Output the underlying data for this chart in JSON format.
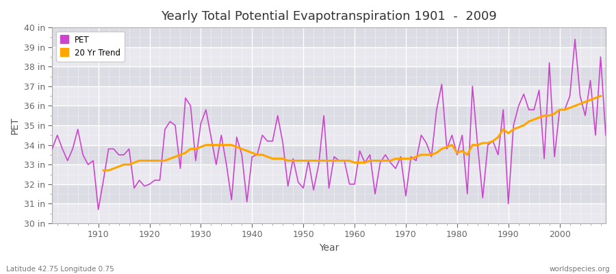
{
  "title": "Yearly Total Potential Evapotranspiration 1901  -  2009",
  "xlabel": "Year",
  "ylabel": "PET",
  "subtitle_left": "Latitude 42.75 Longitude 0.75",
  "subtitle_right": "worldspecies.org",
  "pet_color": "#CC44CC",
  "trend_color": "#FFA500",
  "bg_color": "#FFFFFF",
  "plot_bg_color": "#E8E8EE",
  "plot_bg_alt_color": "#DCDCE4",
  "ylim": [
    30,
    40
  ],
  "yticks": [
    30,
    31,
    32,
    33,
    34,
    35,
    36,
    37,
    38,
    39,
    40
  ],
  "ytick_labels": [
    "30 in",
    "31 in",
    "32 in",
    "33 in",
    "34 in",
    "35 in",
    "36 in",
    "37 in",
    "38 in",
    "39 in",
    "40 in"
  ],
  "xlim": [
    1901,
    2009
  ],
  "xticks": [
    1910,
    1920,
    1930,
    1940,
    1950,
    1960,
    1970,
    1980,
    1990,
    2000
  ],
  "years": [
    1901,
    1902,
    1903,
    1904,
    1905,
    1906,
    1907,
    1908,
    1909,
    1910,
    1911,
    1912,
    1913,
    1914,
    1915,
    1916,
    1917,
    1918,
    1919,
    1920,
    1921,
    1922,
    1923,
    1924,
    1925,
    1926,
    1927,
    1928,
    1929,
    1930,
    1931,
    1932,
    1933,
    1934,
    1935,
    1936,
    1937,
    1938,
    1939,
    1940,
    1941,
    1942,
    1943,
    1944,
    1945,
    1946,
    1947,
    1948,
    1949,
    1950,
    1951,
    1952,
    1953,
    1954,
    1955,
    1956,
    1957,
    1958,
    1959,
    1960,
    1961,
    1962,
    1963,
    1964,
    1965,
    1966,
    1967,
    1968,
    1969,
    1970,
    1971,
    1972,
    1973,
    1974,
    1975,
    1976,
    1977,
    1978,
    1979,
    1980,
    1981,
    1982,
    1983,
    1984,
    1985,
    1986,
    1987,
    1988,
    1989,
    1990,
    1991,
    1992,
    1993,
    1994,
    1995,
    1996,
    1997,
    1998,
    1999,
    2000,
    2001,
    2002,
    2003,
    2004,
    2005,
    2006,
    2007,
    2008,
    2009
  ],
  "pet_values": [
    33.8,
    34.5,
    33.8,
    33.2,
    33.8,
    34.8,
    33.5,
    33.0,
    33.2,
    30.7,
    32.2,
    33.8,
    33.8,
    33.5,
    33.5,
    33.8,
    31.8,
    32.2,
    31.9,
    32.0,
    32.2,
    32.2,
    34.8,
    35.2,
    35.0,
    32.8,
    36.4,
    36.0,
    33.2,
    35.1,
    35.8,
    34.4,
    33.0,
    34.5,
    33.0,
    31.2,
    34.4,
    33.5,
    31.1,
    33.4,
    33.5,
    34.5,
    34.2,
    34.2,
    35.5,
    34.1,
    31.9,
    33.3,
    32.1,
    31.8,
    33.2,
    31.7,
    33.0,
    35.5,
    31.8,
    33.4,
    33.2,
    33.2,
    32.0,
    32.0,
    33.7,
    33.1,
    33.5,
    31.5,
    33.1,
    33.5,
    33.1,
    32.8,
    33.4,
    31.4,
    33.4,
    33.2,
    34.5,
    34.1,
    33.4,
    35.8,
    37.1,
    33.8,
    34.5,
    33.5,
    34.5,
    31.5,
    37.0,
    34.0,
    31.3,
    34.0,
    34.2,
    33.5,
    35.8,
    31.0,
    35.0,
    36.0,
    36.6,
    35.8,
    35.8,
    36.8,
    33.3,
    38.2,
    33.4,
    35.8,
    35.8,
    36.5,
    39.4,
    36.5,
    35.5,
    37.3,
    34.5,
    38.5,
    34.5
  ],
  "trend_values": [
    null,
    null,
    null,
    null,
    null,
    null,
    null,
    null,
    null,
    null,
    32.7,
    32.7,
    32.8,
    32.9,
    33.0,
    33.0,
    33.1,
    33.2,
    33.2,
    33.2,
    33.2,
    33.2,
    33.2,
    33.3,
    33.4,
    33.5,
    33.6,
    33.8,
    33.8,
    33.9,
    34.0,
    34.0,
    34.0,
    34.0,
    34.0,
    34.0,
    33.9,
    33.8,
    33.7,
    33.6,
    33.5,
    33.5,
    33.4,
    33.3,
    33.3,
    33.3,
    33.2,
    33.2,
    33.2,
    33.2,
    33.2,
    33.2,
    33.2,
    33.2,
    33.2,
    33.2,
    33.2,
    33.2,
    33.2,
    33.1,
    33.1,
    33.1,
    33.2,
    33.2,
    33.2,
    33.2,
    33.2,
    33.3,
    33.3,
    33.3,
    33.3,
    33.4,
    33.5,
    33.5,
    33.5,
    33.6,
    33.8,
    33.9,
    34.0,
    33.6,
    33.7,
    33.5,
    34.0,
    34.0,
    34.1,
    34.1,
    34.2,
    34.4,
    34.8,
    34.6,
    34.8,
    34.9,
    35.0,
    35.2,
    35.3,
    35.4,
    35.5,
    35.5,
    35.6,
    35.8,
    35.8,
    35.9,
    36.0,
    36.1,
    36.2,
    36.3,
    36.4,
    36.5,
    null
  ]
}
